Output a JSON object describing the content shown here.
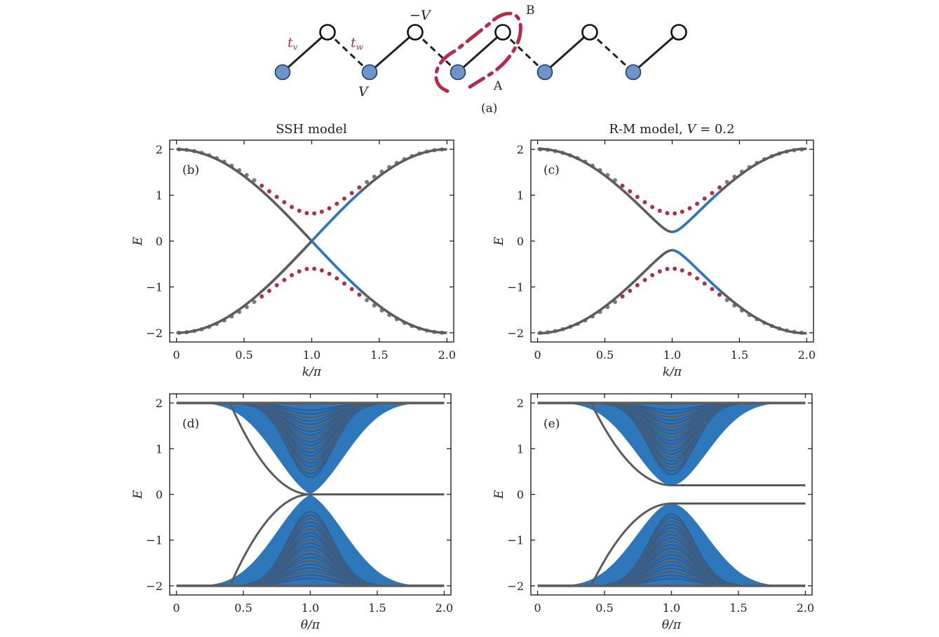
{
  "colors": {
    "band_gray": "#5c5c5c",
    "band_blue": "#2f77bb",
    "dot_red": "#a8344c",
    "dot_gray": "#7a7a7a",
    "site_blue": "#6f94c9",
    "site_blue_edge": "#1d3a66",
    "cell_red": "#b02e4a",
    "axis": "#222222"
  },
  "diagram": {
    "panel_label": "(a)",
    "label_t_v": "t",
    "sub_v": "v",
    "label_t_w": "t",
    "sub_w": "w",
    "label_minus_V": "−V",
    "label_V": "V",
    "label_A": "A",
    "label_B": "B"
  },
  "chart_data": [
    {
      "id": "b",
      "type": "line",
      "title": "SSH model",
      "panel_label": "(b)",
      "xlabel": "k/π",
      "ylabel": "E",
      "xlim": [
        -0.05,
        2.05
      ],
      "ylim": [
        -2.2,
        2.2
      ],
      "xticks": [
        "0",
        "0.5",
        "1.0",
        "1.5",
        "2.0"
      ],
      "yticks": [
        "2",
        "1",
        "0",
        "−1",
        "−2"
      ],
      "model": {
        "kind": "band",
        "t_v": 1.0,
        "t_w": 1.0,
        "V": 0.0
      },
      "series": [
        {
          "name": "upper band",
          "formula": "+sqrt(t_v^2 + t_w^2 + 2 t_v t_w cos(kπ) + V^2)"
        },
        {
          "name": "lower band",
          "formula": "-sqrt(t_v^2 + t_w^2 + 2 t_v t_w cos(kπ) + V^2)"
        },
        {
          "name": "reference dotted bands",
          "t_v": 1.3,
          "t_w": 0.7,
          "style": "dotted"
        }
      ]
    },
    {
      "id": "c",
      "type": "line",
      "title": "R-M model, V = 0.2",
      "title_text": "R-M model, ",
      "title_var": "V",
      "title_value": " = 0.2",
      "panel_label": "(c)",
      "xlabel": "k/π",
      "ylabel": "E",
      "xlim": [
        -0.05,
        2.05
      ],
      "ylim": [
        -2.2,
        2.2
      ],
      "xticks": [
        "0",
        "0.5",
        "1.0",
        "1.5",
        "2.0"
      ],
      "yticks": [
        "2",
        "1",
        "0",
        "−1",
        "−2"
      ],
      "model": {
        "kind": "band",
        "t_v": 1.0,
        "t_w": 1.0,
        "V": 0.2
      },
      "series": [
        {
          "name": "upper band",
          "formula": "+sqrt(t_v^2 + t_w^2 + 2 t_v t_w cos(kπ) + V^2)"
        },
        {
          "name": "lower band",
          "formula": "-sqrt(t_v^2 + t_w^2 + 2 t_v t_w cos(kπ) + V^2)"
        },
        {
          "name": "reference dotted bands",
          "t_v": 1.3,
          "t_w": 0.7,
          "style": "dotted"
        }
      ]
    },
    {
      "id": "d",
      "type": "line",
      "title": "",
      "panel_label": "(d)",
      "xlabel": "θ/π",
      "ylabel": "E",
      "xlim": [
        -0.05,
        2.05
      ],
      "ylim": [
        -2.2,
        2.2
      ],
      "xticks": [
        "0",
        "0.5",
        "1.0",
        "1.5",
        "2.0"
      ],
      "yticks": [
        "2",
        "1",
        "0",
        "−1",
        "−2"
      ],
      "model": {
        "kind": "pumping",
        "V": 0.0,
        "edge_level": 0.0,
        "bulk_levels": 20
      },
      "series": [
        {
          "name": "bulk spectrum",
          "levels": 20
        },
        {
          "name": "edge state",
          "value_after_pi": 0.0
        }
      ]
    },
    {
      "id": "e",
      "type": "line",
      "title": "",
      "panel_label": "(e)",
      "xlabel": "θ/π",
      "ylabel": "E",
      "xlim": [
        -0.05,
        2.05
      ],
      "ylim": [
        -2.2,
        2.2
      ],
      "xticks": [
        "0",
        "0.5",
        "1.0",
        "1.5",
        "2.0"
      ],
      "yticks": [
        "2",
        "1",
        "0",
        "−1",
        "−2"
      ],
      "model": {
        "kind": "pumping",
        "V": 0.2,
        "edge_level": 0.2,
        "bulk_levels": 20
      },
      "series": [
        {
          "name": "bulk spectrum",
          "levels": 20
        },
        {
          "name": "edge state",
          "value_after_pi": 0.2
        }
      ]
    }
  ]
}
